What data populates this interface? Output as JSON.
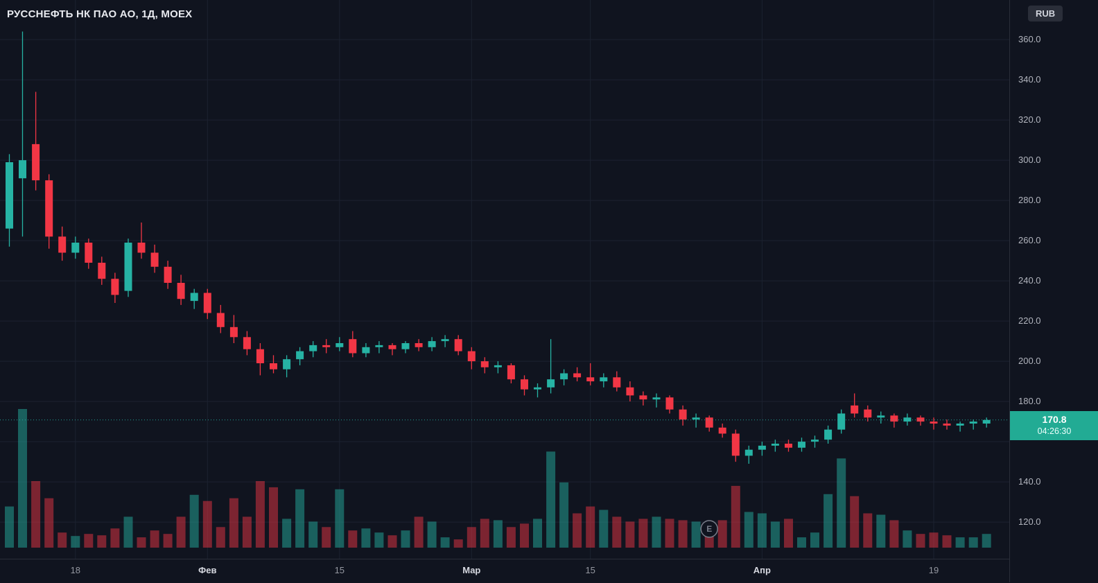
{
  "header": {
    "legend": "РУССНЕФТЬ НК ПАО АО, 1Д, MOEX"
  },
  "price_axis": {
    "currency_button": "RUB"
  },
  "last_price": {
    "value": "170.8",
    "countdown": "04:26:30"
  },
  "colors": {
    "bg": "#10141f",
    "grid": "#1c2230",
    "up": "#26b3a4",
    "down": "#f23645",
    "axis_text": "#b2b5be",
    "month_text": "#d6d8e0",
    "label_bg": "#22ab94",
    "chip_bg": "#2a2e39",
    "separator": "#2a2e39",
    "marker": "#7a7e8a",
    "title_text": "#e8eaef"
  },
  "chart_data": {
    "type": "candlestick",
    "title": "РУССНЕФТЬ НК ПАО АО, 1Д, MOEX",
    "symbol": "РУССНЕФТЬ НК ПАО АО",
    "interval": "1Д",
    "exchange": "MOEX",
    "currency": "RUB",
    "last_price": 170.8,
    "countdown": "04:26:30",
    "ylim": [
      101,
      380
    ],
    "grid": true,
    "volume_pane": "overlay-bottom",
    "price_ticks": [
      360,
      340,
      320,
      300,
      280,
      260,
      240,
      220,
      200,
      180,
      160,
      140,
      120
    ],
    "time_ticks": [
      {
        "index": 5,
        "label": "18",
        "major": false
      },
      {
        "index": 15,
        "label": "Фев",
        "major": true
      },
      {
        "index": 25,
        "label": "15",
        "major": false
      },
      {
        "index": 35,
        "label": "Мар",
        "major": true
      },
      {
        "index": 44,
        "label": "15",
        "major": false
      },
      {
        "index": 57,
        "label": "Апр",
        "major": true
      },
      {
        "index": 70,
        "label": "19",
        "major": false
      }
    ],
    "event_marker": {
      "index": 53,
      "label": "E"
    },
    "ohlcv_fields": [
      "open",
      "high",
      "low",
      "close",
      "volume"
    ],
    "candles": [
      [
        266,
        303,
        257,
        299,
        60
      ],
      [
        291,
        364,
        262,
        300,
        202
      ],
      [
        308,
        334,
        285,
        290,
        97
      ],
      [
        290,
        293,
        256,
        262,
        72
      ],
      [
        262,
        267,
        250,
        254,
        22
      ],
      [
        254,
        262,
        251,
        259,
        17
      ],
      [
        259,
        261,
        246,
        249,
        20
      ],
      [
        249,
        252,
        238,
        241,
        18
      ],
      [
        241,
        244,
        229,
        233,
        28
      ],
      [
        235,
        261,
        232,
        259,
        45
      ],
      [
        259,
        269,
        251,
        254,
        15
      ],
      [
        254,
        258,
        244,
        247,
        25
      ],
      [
        247,
        250,
        236,
        239,
        20
      ],
      [
        239,
        243,
        228,
        231,
        45
      ],
      [
        230,
        236,
        226,
        234,
        77
      ],
      [
        234,
        236,
        221,
        224,
        68
      ],
      [
        224,
        228,
        214,
        217,
        30
      ],
      [
        217,
        223,
        209,
        212,
        72
      ],
      [
        212,
        215,
        203,
        206,
        45
      ],
      [
        206,
        209,
        193,
        199,
        97
      ],
      [
        199,
        203,
        194,
        196,
        88
      ],
      [
        196,
        203,
        192,
        201,
        42
      ],
      [
        201,
        207,
        198,
        205,
        85
      ],
      [
        205,
        210,
        202,
        208,
        38
      ],
      [
        208,
        211,
        204,
        207,
        30
      ],
      [
        207,
        212,
        205,
        209,
        85
      ],
      [
        211,
        215,
        202,
        204,
        25
      ],
      [
        204,
        209,
        202,
        207,
        28
      ],
      [
        207,
        210,
        204,
        208,
        22
      ],
      [
        208,
        209,
        203,
        206,
        18
      ],
      [
        206,
        210,
        204,
        209,
        25
      ],
      [
        209,
        211,
        205,
        207,
        45
      ],
      [
        207,
        212,
        205,
        210,
        38
      ],
      [
        210,
        213,
        207,
        211,
        15
      ],
      [
        211,
        213,
        203,
        205,
        12
      ],
      [
        205,
        207,
        196,
        200,
        30
      ],
      [
        200,
        202,
        194,
        197,
        42
      ],
      [
        197,
        200,
        194,
        198,
        40
      ],
      [
        198,
        199,
        189,
        191,
        30
      ],
      [
        191,
        193,
        183,
        186,
        35
      ],
      [
        186,
        189,
        182,
        187,
        42
      ],
      [
        187,
        211,
        184,
        191,
        140
      ],
      [
        191,
        196,
        188,
        194,
        95
      ],
      [
        194,
        197,
        190,
        192,
        50
      ],
      [
        192,
        199,
        188,
        190,
        60
      ],
      [
        190,
        194,
        187,
        192,
        55
      ],
      [
        192,
        195,
        185,
        187,
        45
      ],
      [
        187,
        190,
        180,
        183,
        38
      ],
      [
        183,
        185,
        178,
        181,
        42
      ],
      [
        181,
        184,
        177,
        182,
        45
      ],
      [
        182,
        183,
        174,
        176,
        42
      ],
      [
        176,
        178,
        168,
        171,
        40
      ],
      [
        171,
        174,
        167,
        172,
        38
      ],
      [
        172,
        173,
        165,
        167,
        38
      ],
      [
        167,
        169,
        162,
        164,
        40
      ],
      [
        164,
        166,
        150,
        153,
        90
      ],
      [
        153,
        158,
        149,
        156,
        52
      ],
      [
        156,
        160,
        153,
        158,
        50
      ],
      [
        158,
        161,
        155,
        159,
        38
      ],
      [
        159,
        161,
        155,
        157,
        42
      ],
      [
        157,
        162,
        155,
        160,
        15
      ],
      [
        160,
        163,
        157,
        161,
        22
      ],
      [
        161,
        168,
        159,
        166,
        78
      ],
      [
        166,
        176,
        164,
        174,
        130
      ],
      [
        178,
        184,
        172,
        174,
        75
      ],
      [
        176,
        178,
        170,
        172,
        50
      ],
      [
        172,
        175,
        169,
        173,
        48
      ],
      [
        173,
        174,
        167,
        170,
        40
      ],
      [
        170,
        174,
        168,
        172,
        25
      ],
      [
        172,
        173,
        168,
        170,
        20
      ],
      [
        170,
        172,
        166,
        169,
        22
      ],
      [
        169,
        171,
        166,
        168,
        18
      ],
      [
        168,
        170,
        165,
        169,
        15
      ],
      [
        169,
        171,
        166,
        170,
        15
      ],
      [
        169,
        172,
        167,
        170.8,
        20
      ]
    ]
  }
}
